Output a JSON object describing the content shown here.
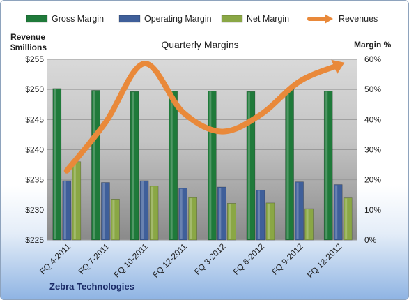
{
  "chart_data": {
    "type": "bar",
    "title": "Quarterly Margins",
    "categories": [
      "FQ 4-2011",
      "FQ 7-2011",
      "FQ 10-2011",
      "FQ 12-2011",
      "FQ 3-2012",
      "FQ 6-2012",
      "FQ 9-2012",
      "FQ 12-2012"
    ],
    "series": [
      {
        "name": "Gross Margin",
        "axis": "right",
        "color": "#1f7a3a",
        "values": [
          50.3,
          49.7,
          49.3,
          49.5,
          49.5,
          49.3,
          50.1,
          49.5
        ]
      },
      {
        "name": "Operating Margin",
        "axis": "right",
        "color": "#3f5f9a",
        "values": [
          19.7,
          19.1,
          19.7,
          17.2,
          17.6,
          16.6,
          19.3,
          18.4
        ]
      },
      {
        "name": "Net Margin",
        "axis": "right",
        "color": "#8aa745",
        "values": [
          26.0,
          13.6,
          17.9,
          14.1,
          12.2,
          12.3,
          10.4,
          14.0
        ]
      },
      {
        "name": "Revenues",
        "axis": "left",
        "type": "line",
        "color": "#e9893a",
        "values": [
          236.5,
          244.5,
          254.3,
          246.2,
          243.0,
          245.8,
          251.3,
          254.0
        ]
      }
    ],
    "left_axis": {
      "label": "Revenue $millions",
      "ylim": [
        225,
        255
      ],
      "ticks": [
        "$225",
        "$230",
        "$235",
        "$240",
        "$245",
        "$250",
        "$255"
      ]
    },
    "right_axis": {
      "label": "Margin %",
      "ylim": [
        0,
        60
      ],
      "ticks": [
        "0%",
        "10%",
        "20%",
        "30%",
        "40%",
        "50%",
        "60%"
      ]
    },
    "legend": "top",
    "grid": true
  },
  "left_axis_label_line1": "Revenue",
  "left_axis_label_line2": "$millions",
  "right_axis_label": "Margin %",
  "footer": "Zebra Technologies"
}
